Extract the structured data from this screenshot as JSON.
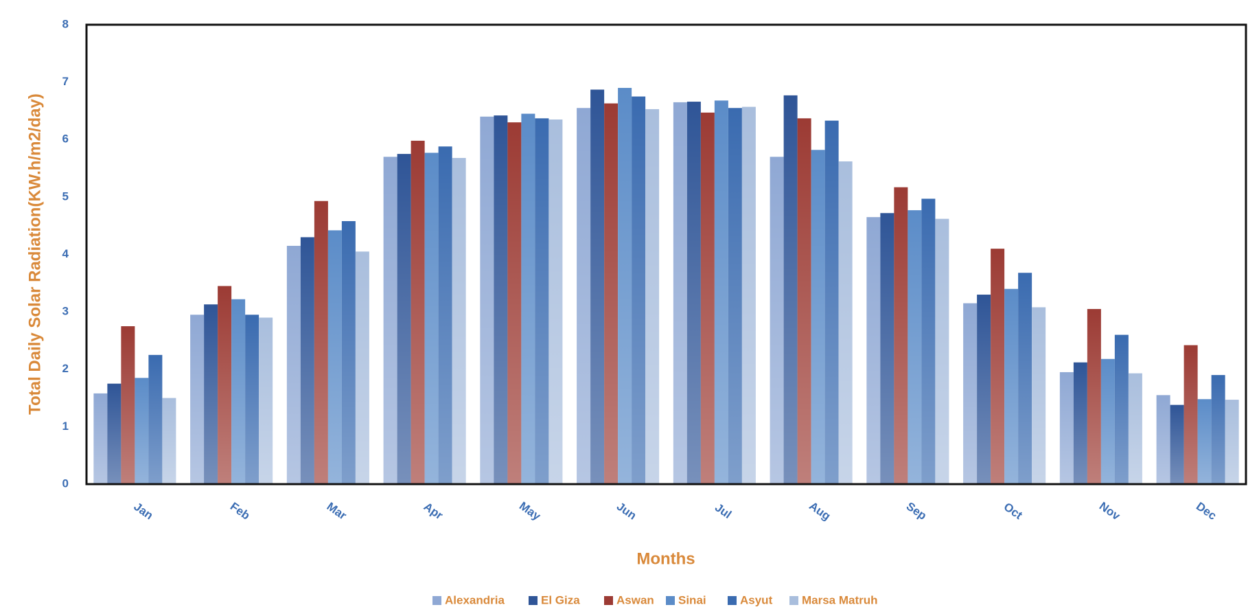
{
  "chart_data": {
    "type": "bar",
    "y_label": "Total Daily Solar Radiation(KW.h/m2/day)",
    "x_label": "Months",
    "categories": [
      "Jan",
      "Feb",
      "Mar",
      "Apr",
      "May",
      "Jun",
      "Jul",
      "Aug",
      "Sep",
      "Oct",
      "Nov",
      "Dec"
    ],
    "series": [
      {
        "name": "Alexandria",
        "color": "#8fa8d4",
        "values": [
          1.58,
          2.95,
          4.15,
          5.7,
          6.4,
          6.55,
          6.65,
          5.7,
          4.65,
          3.15,
          1.95,
          1.55
        ]
      },
      {
        "name": "El Giza",
        "color": "#2f5597",
        "values": [
          1.75,
          3.13,
          4.3,
          5.75,
          6.42,
          6.87,
          6.66,
          6.77,
          4.72,
          3.3,
          2.12,
          1.38
        ]
      },
      {
        "name": "Aswan",
        "color": "#9c3b34",
        "values": [
          2.75,
          3.45,
          4.93,
          5.98,
          6.3,
          6.63,
          6.47,
          6.37,
          5.17,
          4.1,
          3.05,
          2.42
        ]
      },
      {
        "name": "Sinai",
        "color": "#5b8cc8",
        "values": [
          1.85,
          3.22,
          4.42,
          5.77,
          6.45,
          6.9,
          6.68,
          5.82,
          4.77,
          3.4,
          2.18,
          1.48
        ]
      },
      {
        "name": "Asyut",
        "color": "#3a6bb0",
        "values": [
          2.25,
          2.95,
          4.58,
          5.88,
          6.37,
          6.75,
          6.55,
          6.33,
          4.97,
          3.68,
          2.6,
          1.9
        ]
      },
      {
        "name": "Marsa Matruh",
        "color": "#a9bedd",
        "values": [
          1.5,
          2.9,
          4.05,
          5.68,
          6.35,
          6.53,
          6.57,
          5.62,
          4.62,
          3.08,
          1.93,
          1.47
        ]
      }
    ],
    "ylim": [
      0,
      8
    ],
    "yticks": [
      0,
      1,
      2,
      3,
      4,
      5,
      6,
      7,
      8
    ],
    "grid": false
  }
}
